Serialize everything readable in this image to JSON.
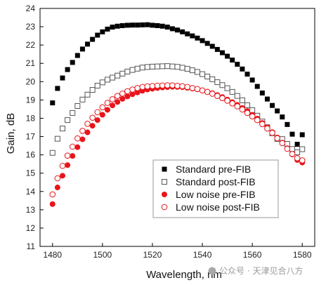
{
  "chart_data": {
    "type": "scatter",
    "title": "",
    "xlabel": "Wavelength, nm",
    "ylabel": "Gain, dB",
    "xlim": [
      1475,
      1585
    ],
    "ylim": [
      11,
      24
    ],
    "xticks": [
      1480,
      1500,
      1520,
      1540,
      1560,
      1580
    ],
    "yticks": [
      11,
      12,
      13,
      14,
      15,
      16,
      17,
      18,
      19,
      20,
      21,
      22,
      23,
      24
    ],
    "grid": false,
    "legend_position": "bottom-right",
    "series": [
      {
        "name": "Standard pre-FIB",
        "marker": "square-filled",
        "color": "#000000",
        "points": [
          [
            1480,
            18.84
          ],
          [
            1482,
            19.63
          ],
          [
            1484,
            20.2
          ],
          [
            1486,
            20.66
          ],
          [
            1488,
            21.05
          ],
          [
            1490,
            21.43
          ],
          [
            1492,
            21.78
          ],
          [
            1494,
            22.05
          ],
          [
            1496,
            22.31
          ],
          [
            1498,
            22.54
          ],
          [
            1500,
            22.72
          ],
          [
            1502,
            22.87
          ],
          [
            1504,
            22.98
          ],
          [
            1506,
            23.03
          ],
          [
            1508,
            23.06
          ],
          [
            1510,
            23.08
          ],
          [
            1512,
            23.09
          ],
          [
            1514,
            23.09
          ],
          [
            1516,
            23.1
          ],
          [
            1518,
            23.11
          ],
          [
            1520,
            23.08
          ],
          [
            1522,
            23.06
          ],
          [
            1524,
            23.03
          ],
          [
            1526,
            22.98
          ],
          [
            1528,
            22.89
          ],
          [
            1530,
            22.82
          ],
          [
            1532,
            22.72
          ],
          [
            1534,
            22.61
          ],
          [
            1536,
            22.5
          ],
          [
            1538,
            22.38
          ],
          [
            1540,
            22.24
          ],
          [
            1542,
            22.09
          ],
          [
            1544,
            21.93
          ],
          [
            1546,
            21.76
          ],
          [
            1548,
            21.58
          ],
          [
            1550,
            21.39
          ],
          [
            1552,
            21.18
          ],
          [
            1554,
            20.95
          ],
          [
            1556,
            20.69
          ],
          [
            1558,
            20.41
          ],
          [
            1560,
            20.09
          ],
          [
            1562,
            19.74
          ],
          [
            1564,
            19.38
          ],
          [
            1566,
            19.05
          ],
          [
            1568,
            18.7
          ],
          [
            1570,
            18.4
          ],
          [
            1572,
            18.07
          ],
          [
            1574,
            17.66
          ],
          [
            1576,
            17.13
          ],
          [
            1578,
            16.58
          ],
          [
            1580,
            17.1
          ]
        ]
      },
      {
        "name": "Standard post-FIB",
        "marker": "square-open",
        "color": "#555555",
        "points": [
          [
            1480,
            16.11
          ],
          [
            1482,
            16.88
          ],
          [
            1484,
            17.44
          ],
          [
            1486,
            17.9
          ],
          [
            1488,
            18.29
          ],
          [
            1490,
            18.67
          ],
          [
            1492,
            19.02
          ],
          [
            1494,
            19.29
          ],
          [
            1496,
            19.55
          ],
          [
            1498,
            19.78
          ],
          [
            1500,
            19.96
          ],
          [
            1502,
            20.11
          ],
          [
            1504,
            20.22
          ],
          [
            1506,
            20.33
          ],
          [
            1508,
            20.44
          ],
          [
            1510,
            20.55
          ],
          [
            1512,
            20.64
          ],
          [
            1514,
            20.71
          ],
          [
            1516,
            20.77
          ],
          [
            1518,
            20.8
          ],
          [
            1520,
            20.82
          ],
          [
            1522,
            20.83
          ],
          [
            1524,
            20.84
          ],
          [
            1526,
            20.85
          ],
          [
            1528,
            20.83
          ],
          [
            1530,
            20.81
          ],
          [
            1532,
            20.76
          ],
          [
            1534,
            20.7
          ],
          [
            1536,
            20.62
          ],
          [
            1538,
            20.53
          ],
          [
            1540,
            20.41
          ],
          [
            1542,
            20.28
          ],
          [
            1544,
            20.13
          ],
          [
            1546,
            19.97
          ],
          [
            1548,
            19.81
          ],
          [
            1550,
            19.64
          ],
          [
            1552,
            19.44
          ],
          [
            1554,
            19.22
          ],
          [
            1556,
            18.98
          ],
          [
            1558,
            18.71
          ],
          [
            1560,
            18.44
          ],
          [
            1562,
            18.14
          ],
          [
            1564,
            17.82
          ],
          [
            1566,
            17.51
          ],
          [
            1568,
            17.18
          ],
          [
            1570,
            16.87
          ],
          [
            1572,
            16.86
          ],
          [
            1574,
            16.6
          ],
          [
            1576,
            16.32
          ],
          [
            1578,
            16.14
          ],
          [
            1580,
            16.31
          ]
        ]
      },
      {
        "name": "Low noise pre-FIB",
        "marker": "circle-filled",
        "color": "#e8151b",
        "points": [
          [
            1480,
            13.31
          ],
          [
            1482,
            14.22
          ],
          [
            1484,
            14.86
          ],
          [
            1486,
            15.44
          ],
          [
            1488,
            15.94
          ],
          [
            1490,
            16.42
          ],
          [
            1492,
            16.85
          ],
          [
            1494,
            17.23
          ],
          [
            1496,
            17.59
          ],
          [
            1498,
            17.9
          ],
          [
            1500,
            18.19
          ],
          [
            1502,
            18.46
          ],
          [
            1504,
            18.7
          ],
          [
            1506,
            18.89
          ],
          [
            1508,
            19.06
          ],
          [
            1510,
            19.19
          ],
          [
            1512,
            19.31
          ],
          [
            1514,
            19.41
          ],
          [
            1516,
            19.5
          ],
          [
            1518,
            19.57
          ],
          [
            1520,
            19.61
          ],
          [
            1522,
            19.65
          ],
          [
            1524,
            19.68
          ],
          [
            1526,
            19.7
          ],
          [
            1528,
            19.72
          ],
          [
            1530,
            19.71
          ],
          [
            1532,
            19.7
          ],
          [
            1534,
            19.66
          ],
          [
            1536,
            19.62
          ],
          [
            1538,
            19.58
          ],
          [
            1540,
            19.52
          ],
          [
            1542,
            19.45
          ],
          [
            1544,
            19.37
          ],
          [
            1546,
            19.27
          ],
          [
            1548,
            19.16
          ],
          [
            1550,
            19.02
          ],
          [
            1552,
            18.88
          ],
          [
            1554,
            18.73
          ],
          [
            1556,
            18.56
          ],
          [
            1558,
            18.39
          ],
          [
            1560,
            18.19
          ],
          [
            1562,
            17.98
          ],
          [
            1564,
            17.74
          ],
          [
            1566,
            17.5
          ],
          [
            1568,
            17.24
          ],
          [
            1570,
            16.95
          ],
          [
            1572,
            16.67
          ],
          [
            1574,
            16.36
          ],
          [
            1576,
            16.02
          ],
          [
            1578,
            15.72
          ],
          [
            1580,
            15.58
          ]
        ]
      },
      {
        "name": "Low noise post-FIB",
        "marker": "circle-open",
        "color": "#e8151b",
        "points": [
          [
            1480,
            13.84
          ],
          [
            1482,
            14.72
          ],
          [
            1484,
            15.4
          ],
          [
            1486,
            15.96
          ],
          [
            1488,
            16.45
          ],
          [
            1490,
            16.9
          ],
          [
            1492,
            17.31
          ],
          [
            1494,
            17.7
          ],
          [
            1496,
            18.03
          ],
          [
            1498,
            18.33
          ],
          [
            1500,
            18.6
          ],
          [
            1502,
            18.84
          ],
          [
            1504,
            19.04
          ],
          [
            1506,
            19.22
          ],
          [
            1508,
            19.35
          ],
          [
            1510,
            19.48
          ],
          [
            1512,
            19.57
          ],
          [
            1514,
            19.65
          ],
          [
            1516,
            19.71
          ],
          [
            1518,
            19.74
          ],
          [
            1520,
            19.76
          ],
          [
            1522,
            19.78
          ],
          [
            1524,
            19.79
          ],
          [
            1526,
            19.8
          ],
          [
            1528,
            19.8
          ],
          [
            1530,
            19.77
          ],
          [
            1532,
            19.75
          ],
          [
            1534,
            19.71
          ],
          [
            1536,
            19.65
          ],
          [
            1538,
            19.6
          ],
          [
            1540,
            19.52
          ],
          [
            1542,
            19.44
          ],
          [
            1544,
            19.34
          ],
          [
            1546,
            19.22
          ],
          [
            1548,
            19.1
          ],
          [
            1550,
            18.96
          ],
          [
            1552,
            18.81
          ],
          [
            1554,
            18.65
          ],
          [
            1556,
            18.48
          ],
          [
            1558,
            18.29
          ],
          [
            1560,
            18.1
          ],
          [
            1562,
            17.9
          ],
          [
            1564,
            17.68
          ],
          [
            1566,
            17.44
          ],
          [
            1568,
            17.2
          ],
          [
            1570,
            16.91
          ],
          [
            1572,
            16.64
          ],
          [
            1574,
            16.33
          ],
          [
            1576,
            16.05
          ],
          [
            1578,
            15.82
          ],
          [
            1580,
            15.7
          ]
        ]
      }
    ]
  },
  "watermark": {
    "text": "公众号 · 天津见合八方",
    "color": "#9a9a9a"
  }
}
